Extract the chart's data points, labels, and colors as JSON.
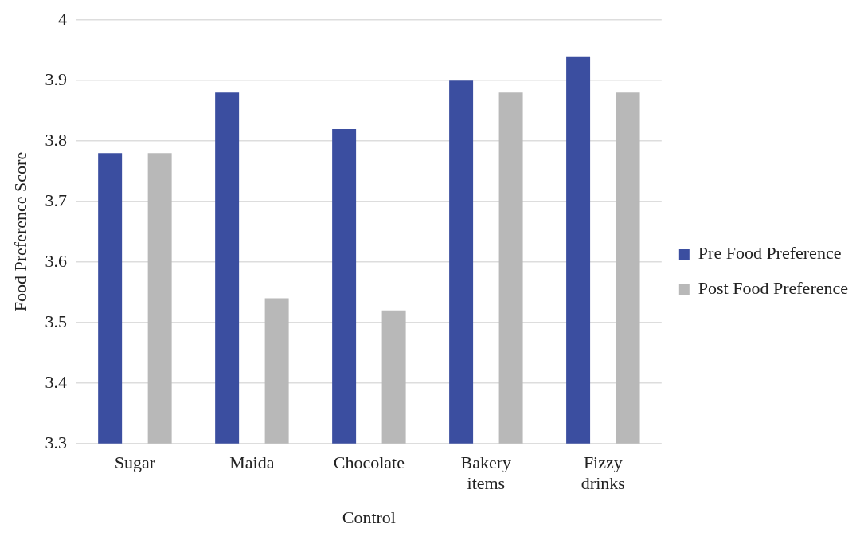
{
  "chart_data": {
    "type": "bar",
    "xlabel": "Control",
    "ylabel": "Food Preference Score",
    "categories": [
      "Sugar",
      "Maida",
      "Chocolate",
      "Bakery items",
      "Fizzy drinks"
    ],
    "series": [
      {
        "name": "Pre Food Preference",
        "color": "#3b4ea0",
        "values": [
          3.78,
          3.88,
          3.82,
          3.9,
          3.94
        ]
      },
      {
        "name": "Post Food Preference",
        "color": "#b8b8b8",
        "values": [
          3.78,
          3.54,
          3.52,
          3.88,
          3.88
        ]
      }
    ],
    "ylim": [
      3.3,
      4
    ],
    "yticks": [
      3.3,
      3.4,
      3.5,
      3.6,
      3.7,
      3.8,
      3.9,
      4
    ],
    "grid": "y",
    "legend": "right"
  }
}
